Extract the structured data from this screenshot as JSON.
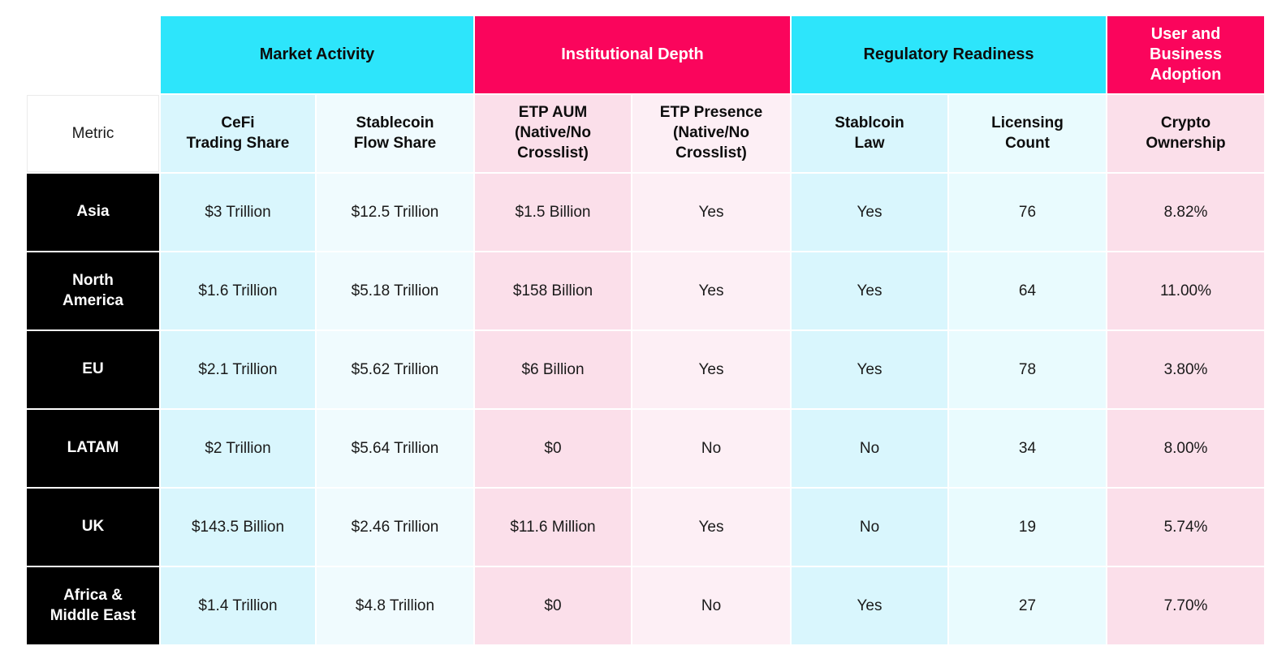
{
  "table": {
    "corner_label": "Metric",
    "groups": [
      {
        "label": "Market Activity",
        "span": 2,
        "bg": "#2DE5FB",
        "text_color": "#0d0d0d"
      },
      {
        "label": "Institutional Depth",
        "span": 2,
        "bg": "#FA055C",
        "text_color": "#ffffff"
      },
      {
        "label": "Regulatory Readiness",
        "span": 2,
        "bg": "#2DE5FB",
        "text_color": "#0d0d0d"
      },
      {
        "label": "User and\nBusiness\nAdoption",
        "span": 1,
        "bg": "#FA055C",
        "text_color": "#ffffff"
      }
    ],
    "columns": [
      {
        "label": "CeFi\nTrading Share",
        "bg": "#D9F6FD"
      },
      {
        "label": "Stablecoin\nFlow Share",
        "bg": "#F0FBFE"
      },
      {
        "label": "ETP AUM\n(Native/No\nCrosslist)",
        "bg": "#FBDFEA"
      },
      {
        "label": "ETP Presence\n(Native/No\nCrosslist)",
        "bg": "#FDEFF5"
      },
      {
        "label": "Stablcoin\nLaw",
        "bg": "#D9F6FD"
      },
      {
        "label": "Licensing\nCount",
        "bg": "#E9FBFE"
      },
      {
        "label": "Crypto\nOwnership",
        "bg": "#FBDFEA"
      }
    ],
    "rows": [
      {
        "region": "Asia",
        "values": [
          "$3 Trillion",
          "$12.5 Trillion",
          "$1.5 Billion",
          "Yes",
          "Yes",
          "76",
          "8.82%"
        ]
      },
      {
        "region": "North\nAmerica",
        "values": [
          "$1.6 Trillion",
          "$5.18 Trillion",
          "$158 Billion",
          "Yes",
          "Yes",
          "64",
          "11.00%"
        ]
      },
      {
        "region": "EU",
        "values": [
          "$2.1 Trillion",
          "$5.62 Trillion",
          "$6 Billion",
          "Yes",
          "Yes",
          "78",
          "3.80%"
        ]
      },
      {
        "region": "LATAM",
        "values": [
          "$2 Trillion",
          "$5.64 Trillion",
          "$0",
          "No",
          "No",
          "34",
          "8.00%"
        ]
      },
      {
        "region": "UK",
        "values": [
          "$143.5 Billion",
          "$2.46 Trillion",
          "$11.6 Million",
          "Yes",
          "No",
          "19",
          "5.74%"
        ]
      },
      {
        "region": "Africa &\nMiddle East",
        "values": [
          "$1.4 Trillion",
          "$4.8 Trillion",
          "$0",
          "No",
          "Yes",
          "27",
          "7.70%"
        ]
      }
    ]
  },
  "chart_data": {
    "type": "table",
    "title": "",
    "column_groups": [
      {
        "name": "Market Activity",
        "columns": [
          "CeFi Trading Share",
          "Stablecoin Flow Share"
        ]
      },
      {
        "name": "Institutional Depth",
        "columns": [
          "ETP AUM (Native/No Crosslist)",
          "ETP Presence (Native/No Crosslist)"
        ]
      },
      {
        "name": "Regulatory Readiness",
        "columns": [
          "Stablcoin Law",
          "Licensing Count"
        ]
      },
      {
        "name": "User and Business Adoption",
        "columns": [
          "Crypto Ownership"
        ]
      }
    ],
    "row_header": "Metric",
    "rows": [
      {
        "region": "Asia",
        "cefi_trading_share": "$3 Trillion",
        "stablecoin_flow_share": "$12.5 Trillion",
        "etp_aum": "$1.5 Billion",
        "etp_presence": "Yes",
        "stablcoin_law": "Yes",
        "licensing_count": 76,
        "crypto_ownership_pct": 8.82
      },
      {
        "region": "North America",
        "cefi_trading_share": "$1.6 Trillion",
        "stablecoin_flow_share": "$5.18 Trillion",
        "etp_aum": "$158 Billion",
        "etp_presence": "Yes",
        "stablcoin_law": "Yes",
        "licensing_count": 64,
        "crypto_ownership_pct": 11.0
      },
      {
        "region": "EU",
        "cefi_trading_share": "$2.1 Trillion",
        "stablecoin_flow_share": "$5.62 Trillion",
        "etp_aum": "$6 Billion",
        "etp_presence": "Yes",
        "stablcoin_law": "Yes",
        "licensing_count": 78,
        "crypto_ownership_pct": 3.8
      },
      {
        "region": "LATAM",
        "cefi_trading_share": "$2 Trillion",
        "stablecoin_flow_share": "$5.64 Trillion",
        "etp_aum": "$0",
        "etp_presence": "No",
        "stablcoin_law": "No",
        "licensing_count": 34,
        "crypto_ownership_pct": 8.0
      },
      {
        "region": "UK",
        "cefi_trading_share": "$143.5 Billion",
        "stablecoin_flow_share": "$2.46 Trillion",
        "etp_aum": "$11.6 Million",
        "etp_presence": "Yes",
        "stablcoin_law": "No",
        "licensing_count": 19,
        "crypto_ownership_pct": 5.74
      },
      {
        "region": "Africa & Middle East",
        "cefi_trading_share": "$1.4 Trillion",
        "stablecoin_flow_share": "$4.8 Trillion",
        "etp_aum": "$0",
        "etp_presence": "No",
        "stablcoin_law": "Yes",
        "licensing_count": 27,
        "crypto_ownership_pct": 7.7
      }
    ],
    "accent_colors": {
      "cyan": "#2DE5FB",
      "pink": "#FA055C",
      "region_header_bg": "#000000"
    },
    "legend_position": "none",
    "grid": false
  }
}
